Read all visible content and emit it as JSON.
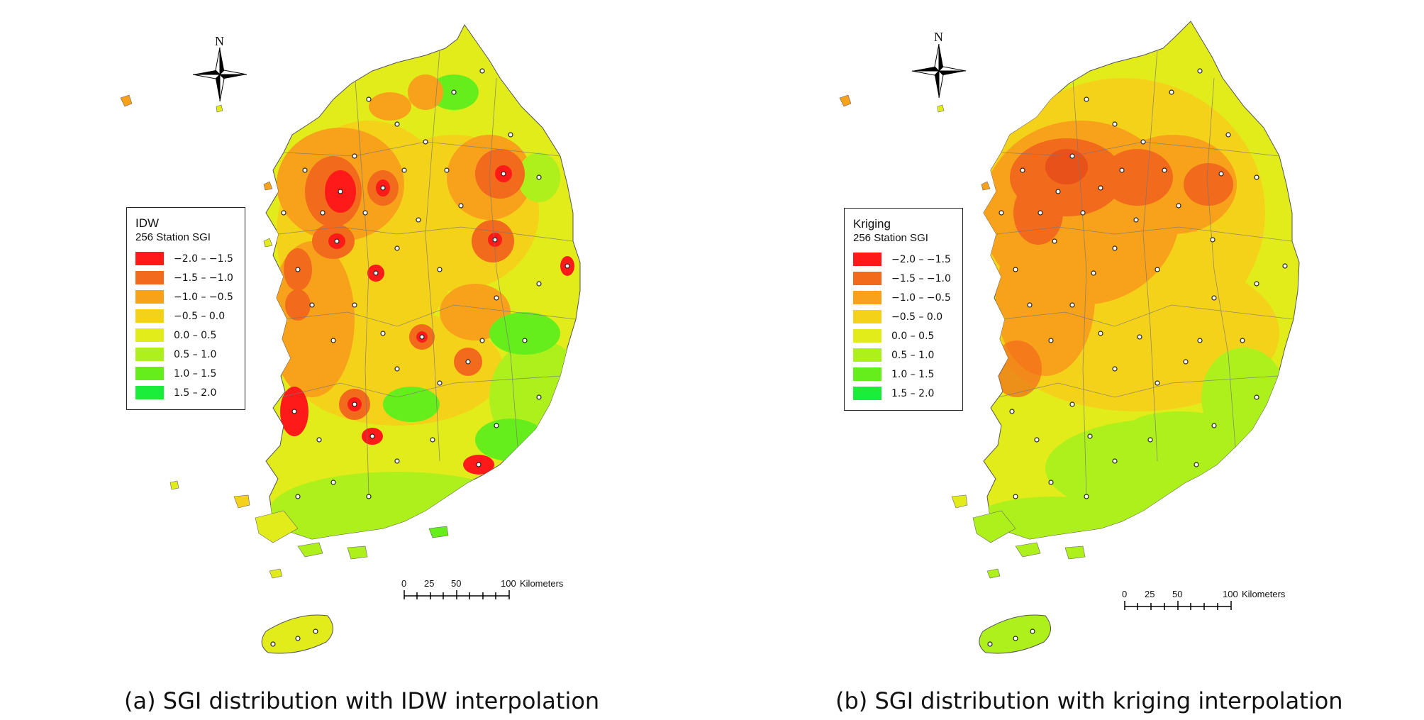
{
  "panels": [
    {
      "legend": {
        "title": "IDW",
        "subtitle": "256 Station SGI",
        "items": [
          {
            "label": "−2.0 – −1.5",
            "color": "#ff1a1a"
          },
          {
            "label": "−1.5 – −1.0",
            "color": "#f26a1b"
          },
          {
            "label": "−1.0 – −0.5",
            "color": "#f7a21a"
          },
          {
            "label": "−0.5 – 0.0",
            "color": "#f5d21a"
          },
          {
            "label": "0.0 – 0.5",
            "color": "#e2ec1a"
          },
          {
            "label": "0.5 – 1.0",
            "color": "#aef01c"
          },
          {
            "label": "1.0 – 1.5",
            "color": "#66ee1c"
          },
          {
            "label": "1.5 – 2.0",
            "color": "#1aee3a"
          }
        ]
      },
      "north": "N",
      "scale": {
        "ticks": [
          "0",
          "25",
          "50",
          "100"
        ],
        "unit": "Kilometers"
      },
      "caption": "(a) SGI distribution with IDW interpolation"
    },
    {
      "legend": {
        "title": "Kriging",
        "subtitle": "256 Station SGI",
        "items": [
          {
            "label": "−2.0 – −1.5",
            "color": "#ff1a1a"
          },
          {
            "label": "−1.5 – −1.0",
            "color": "#f26a1b"
          },
          {
            "label": "−1.0 – −0.5",
            "color": "#f7a21a"
          },
          {
            "label": "−0.5 – 0.0",
            "color": "#f5d21a"
          },
          {
            "label": "0.0 – 0.5",
            "color": "#e2ec1a"
          },
          {
            "label": "0.5 – 1.0",
            "color": "#aef01c"
          },
          {
            "label": "1.0 – 1.5",
            "color": "#66ee1c"
          },
          {
            "label": "1.5 – 2.0",
            "color": "#1aee3a"
          }
        ]
      },
      "north": "N",
      "scale": {
        "ticks": [
          "0",
          "25",
          "50",
          "100"
        ],
        "unit": "Kilometers"
      },
      "caption": "(b) SGI distribution with kriging interpolation"
    }
  ]
}
